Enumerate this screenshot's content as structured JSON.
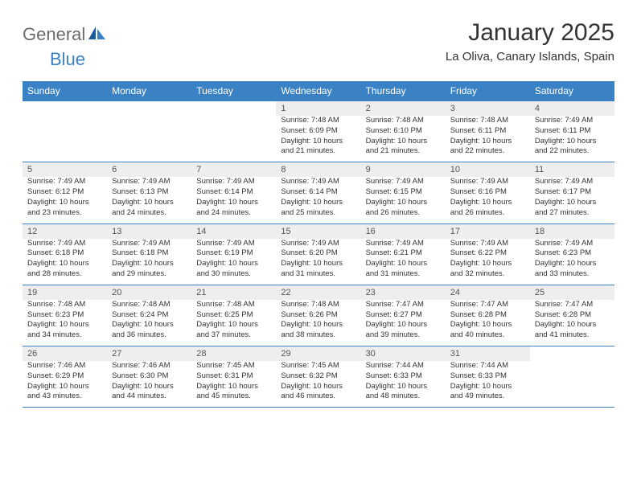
{
  "logo": {
    "word1": "General",
    "word2": "Blue"
  },
  "title": "January 2025",
  "location": "La Oliva, Canary Islands, Spain",
  "colors": {
    "header_bg": "#3b82c4",
    "daynum_bg": "#eeeeee",
    "page_bg": "#ffffff",
    "text": "#333333",
    "logo_gray": "#6b6b6b",
    "logo_blue": "#3b82c4"
  },
  "typography": {
    "title_fontsize": 30,
    "location_fontsize": 15,
    "dayhead_fontsize": 12,
    "daynum_fontsize": 11,
    "cell_fontsize": 9.5
  },
  "day_headers": [
    "Sunday",
    "Monday",
    "Tuesday",
    "Wednesday",
    "Thursday",
    "Friday",
    "Saturday"
  ],
  "calendar": {
    "month": "January",
    "year": 2025,
    "first_weekday_index": 3,
    "days_in_month": 31
  },
  "days": {
    "1": {
      "sunrise": "7:48 AM",
      "sunset": "6:09 PM",
      "daylight_l1": "Daylight: 10 hours",
      "daylight_l2": "and 21 minutes."
    },
    "2": {
      "sunrise": "7:48 AM",
      "sunset": "6:10 PM",
      "daylight_l1": "Daylight: 10 hours",
      "daylight_l2": "and 21 minutes."
    },
    "3": {
      "sunrise": "7:48 AM",
      "sunset": "6:11 PM",
      "daylight_l1": "Daylight: 10 hours",
      "daylight_l2": "and 22 minutes."
    },
    "4": {
      "sunrise": "7:49 AM",
      "sunset": "6:11 PM",
      "daylight_l1": "Daylight: 10 hours",
      "daylight_l2": "and 22 minutes."
    },
    "5": {
      "sunrise": "7:49 AM",
      "sunset": "6:12 PM",
      "daylight_l1": "Daylight: 10 hours",
      "daylight_l2": "and 23 minutes."
    },
    "6": {
      "sunrise": "7:49 AM",
      "sunset": "6:13 PM",
      "daylight_l1": "Daylight: 10 hours",
      "daylight_l2": "and 24 minutes."
    },
    "7": {
      "sunrise": "7:49 AM",
      "sunset": "6:14 PM",
      "daylight_l1": "Daylight: 10 hours",
      "daylight_l2": "and 24 minutes."
    },
    "8": {
      "sunrise": "7:49 AM",
      "sunset": "6:14 PM",
      "daylight_l1": "Daylight: 10 hours",
      "daylight_l2": "and 25 minutes."
    },
    "9": {
      "sunrise": "7:49 AM",
      "sunset": "6:15 PM",
      "daylight_l1": "Daylight: 10 hours",
      "daylight_l2": "and 26 minutes."
    },
    "10": {
      "sunrise": "7:49 AM",
      "sunset": "6:16 PM",
      "daylight_l1": "Daylight: 10 hours",
      "daylight_l2": "and 26 minutes."
    },
    "11": {
      "sunrise": "7:49 AM",
      "sunset": "6:17 PM",
      "daylight_l1": "Daylight: 10 hours",
      "daylight_l2": "and 27 minutes."
    },
    "12": {
      "sunrise": "7:49 AM",
      "sunset": "6:18 PM",
      "daylight_l1": "Daylight: 10 hours",
      "daylight_l2": "and 28 minutes."
    },
    "13": {
      "sunrise": "7:49 AM",
      "sunset": "6:18 PM",
      "daylight_l1": "Daylight: 10 hours",
      "daylight_l2": "and 29 minutes."
    },
    "14": {
      "sunrise": "7:49 AM",
      "sunset": "6:19 PM",
      "daylight_l1": "Daylight: 10 hours",
      "daylight_l2": "and 30 minutes."
    },
    "15": {
      "sunrise": "7:49 AM",
      "sunset": "6:20 PM",
      "daylight_l1": "Daylight: 10 hours",
      "daylight_l2": "and 31 minutes."
    },
    "16": {
      "sunrise": "7:49 AM",
      "sunset": "6:21 PM",
      "daylight_l1": "Daylight: 10 hours",
      "daylight_l2": "and 31 minutes."
    },
    "17": {
      "sunrise": "7:49 AM",
      "sunset": "6:22 PM",
      "daylight_l1": "Daylight: 10 hours",
      "daylight_l2": "and 32 minutes."
    },
    "18": {
      "sunrise": "7:49 AM",
      "sunset": "6:23 PM",
      "daylight_l1": "Daylight: 10 hours",
      "daylight_l2": "and 33 minutes."
    },
    "19": {
      "sunrise": "7:48 AM",
      "sunset": "6:23 PM",
      "daylight_l1": "Daylight: 10 hours",
      "daylight_l2": "and 34 minutes."
    },
    "20": {
      "sunrise": "7:48 AM",
      "sunset": "6:24 PM",
      "daylight_l1": "Daylight: 10 hours",
      "daylight_l2": "and 36 minutes."
    },
    "21": {
      "sunrise": "7:48 AM",
      "sunset": "6:25 PM",
      "daylight_l1": "Daylight: 10 hours",
      "daylight_l2": "and 37 minutes."
    },
    "22": {
      "sunrise": "7:48 AM",
      "sunset": "6:26 PM",
      "daylight_l1": "Daylight: 10 hours",
      "daylight_l2": "and 38 minutes."
    },
    "23": {
      "sunrise": "7:47 AM",
      "sunset": "6:27 PM",
      "daylight_l1": "Daylight: 10 hours",
      "daylight_l2": "and 39 minutes."
    },
    "24": {
      "sunrise": "7:47 AM",
      "sunset": "6:28 PM",
      "daylight_l1": "Daylight: 10 hours",
      "daylight_l2": "and 40 minutes."
    },
    "25": {
      "sunrise": "7:47 AM",
      "sunset": "6:28 PM",
      "daylight_l1": "Daylight: 10 hours",
      "daylight_l2": "and 41 minutes."
    },
    "26": {
      "sunrise": "7:46 AM",
      "sunset": "6:29 PM",
      "daylight_l1": "Daylight: 10 hours",
      "daylight_l2": "and 43 minutes."
    },
    "27": {
      "sunrise": "7:46 AM",
      "sunset": "6:30 PM",
      "daylight_l1": "Daylight: 10 hours",
      "daylight_l2": "and 44 minutes."
    },
    "28": {
      "sunrise": "7:45 AM",
      "sunset": "6:31 PM",
      "daylight_l1": "Daylight: 10 hours",
      "daylight_l2": "and 45 minutes."
    },
    "29": {
      "sunrise": "7:45 AM",
      "sunset": "6:32 PM",
      "daylight_l1": "Daylight: 10 hours",
      "daylight_l2": "and 46 minutes."
    },
    "30": {
      "sunrise": "7:44 AM",
      "sunset": "6:33 PM",
      "daylight_l1": "Daylight: 10 hours",
      "daylight_l2": "and 48 minutes."
    },
    "31": {
      "sunrise": "7:44 AM",
      "sunset": "6:33 PM",
      "daylight_l1": "Daylight: 10 hours",
      "daylight_l2": "and 49 minutes."
    }
  },
  "labels": {
    "sunrise_prefix": "Sunrise: ",
    "sunset_prefix": "Sunset: "
  }
}
